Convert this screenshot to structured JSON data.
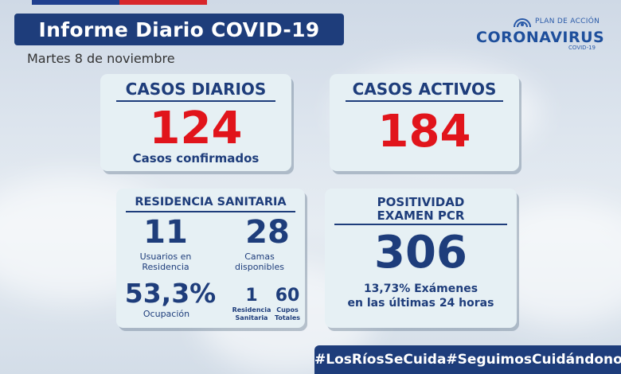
{
  "header": {
    "title": "Informe Diario COVID-19",
    "date": "Martes 8 de noviembre"
  },
  "logo": {
    "plan": "PLAN DE ACCIÓN",
    "name": "CORONAVIRUS",
    "sub": "COVID-19",
    "icon": "gov-star-icon"
  },
  "casos_diarios": {
    "heading": "CASOS DIARIOS",
    "value": "124",
    "label": "Casos confirmados"
  },
  "casos_activos": {
    "heading": "CASOS ACTIVOS",
    "value": "184"
  },
  "residencia": {
    "heading": "RESIDENCIA SANITARIA",
    "usuarios_value": "11",
    "usuarios_label_1": "Usuarios en",
    "usuarios_label_2": "Residencia",
    "camas_value": "28",
    "camas_label_1": "Camas",
    "camas_label_2": "disponibles",
    "ocupacion_value": "53,3%",
    "ocupacion_label": "Ocupación",
    "residencias_value": "1",
    "residencias_label_1": "Residencia",
    "residencias_label_2": "Sanitaria",
    "cupos_value": "60",
    "cupos_label_1": "Cupos",
    "cupos_label_2": "Totales"
  },
  "positividad": {
    "heading_1": "POSITIVIDAD",
    "heading_2": "EXAMEN PCR",
    "value": "306",
    "label_1": "13,73% Exámenes",
    "label_2": "en las últimas 24 horas"
  },
  "footer": {
    "tag1": "#LosRíosSeCuida",
    "tag2": "#SeguimosCuidándonos"
  },
  "colors": {
    "navy": "#1e3d7b",
    "red": "#e1141b",
    "card": "#e6f0f4"
  }
}
